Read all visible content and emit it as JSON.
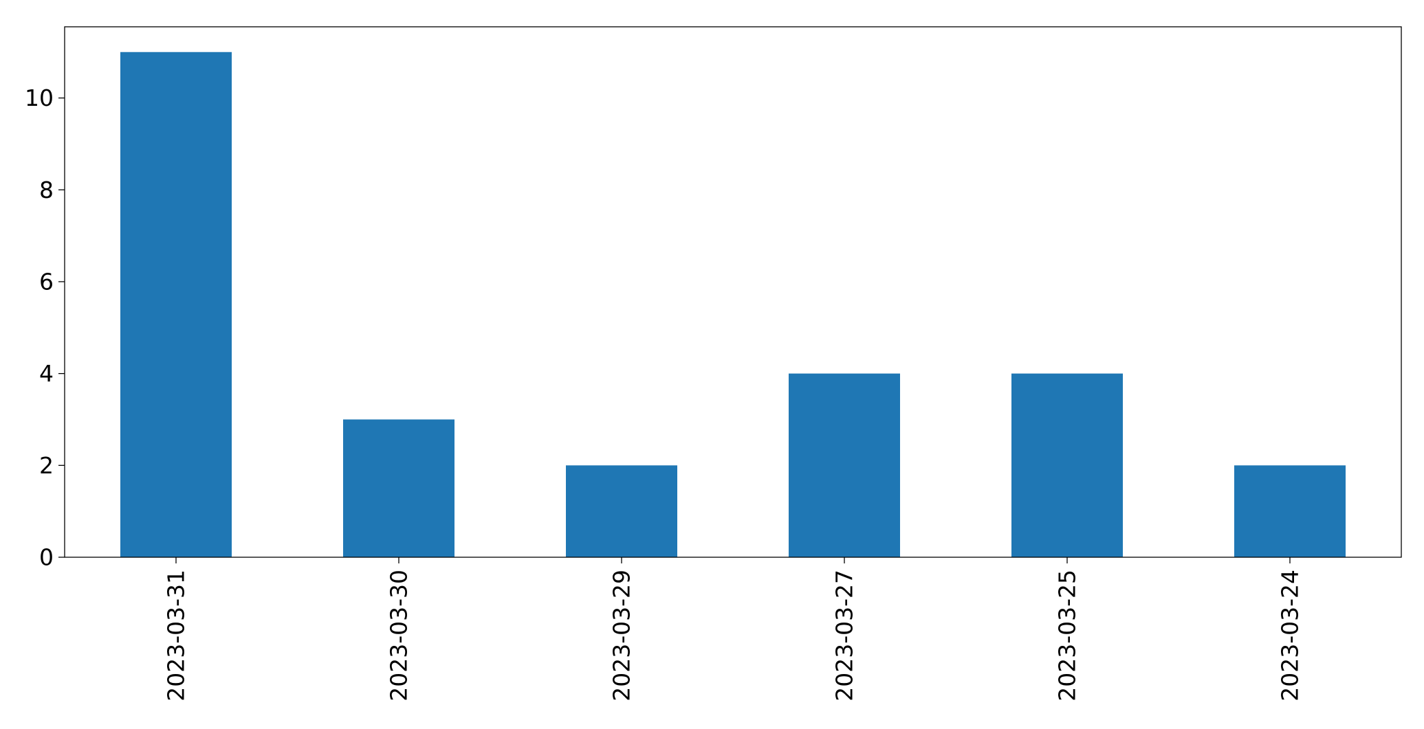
{
  "chart_data": {
    "type": "bar",
    "title": "",
    "xlabel": "",
    "ylabel": "",
    "categories": [
      "2023-03-31",
      "2023-03-30",
      "2023-03-29",
      "2023-03-27",
      "2023-03-25",
      "2023-03-24"
    ],
    "values": [
      11,
      3,
      2,
      4,
      4,
      2
    ],
    "ylim": [
      0,
      11.55
    ],
    "yticks": [
      0,
      2,
      4,
      6,
      8,
      10
    ],
    "ytick_labels": [
      "0",
      "2",
      "4",
      "6",
      "8",
      "10"
    ],
    "grid": false,
    "legend": "none",
    "bar_color": "#1f77b4"
  }
}
